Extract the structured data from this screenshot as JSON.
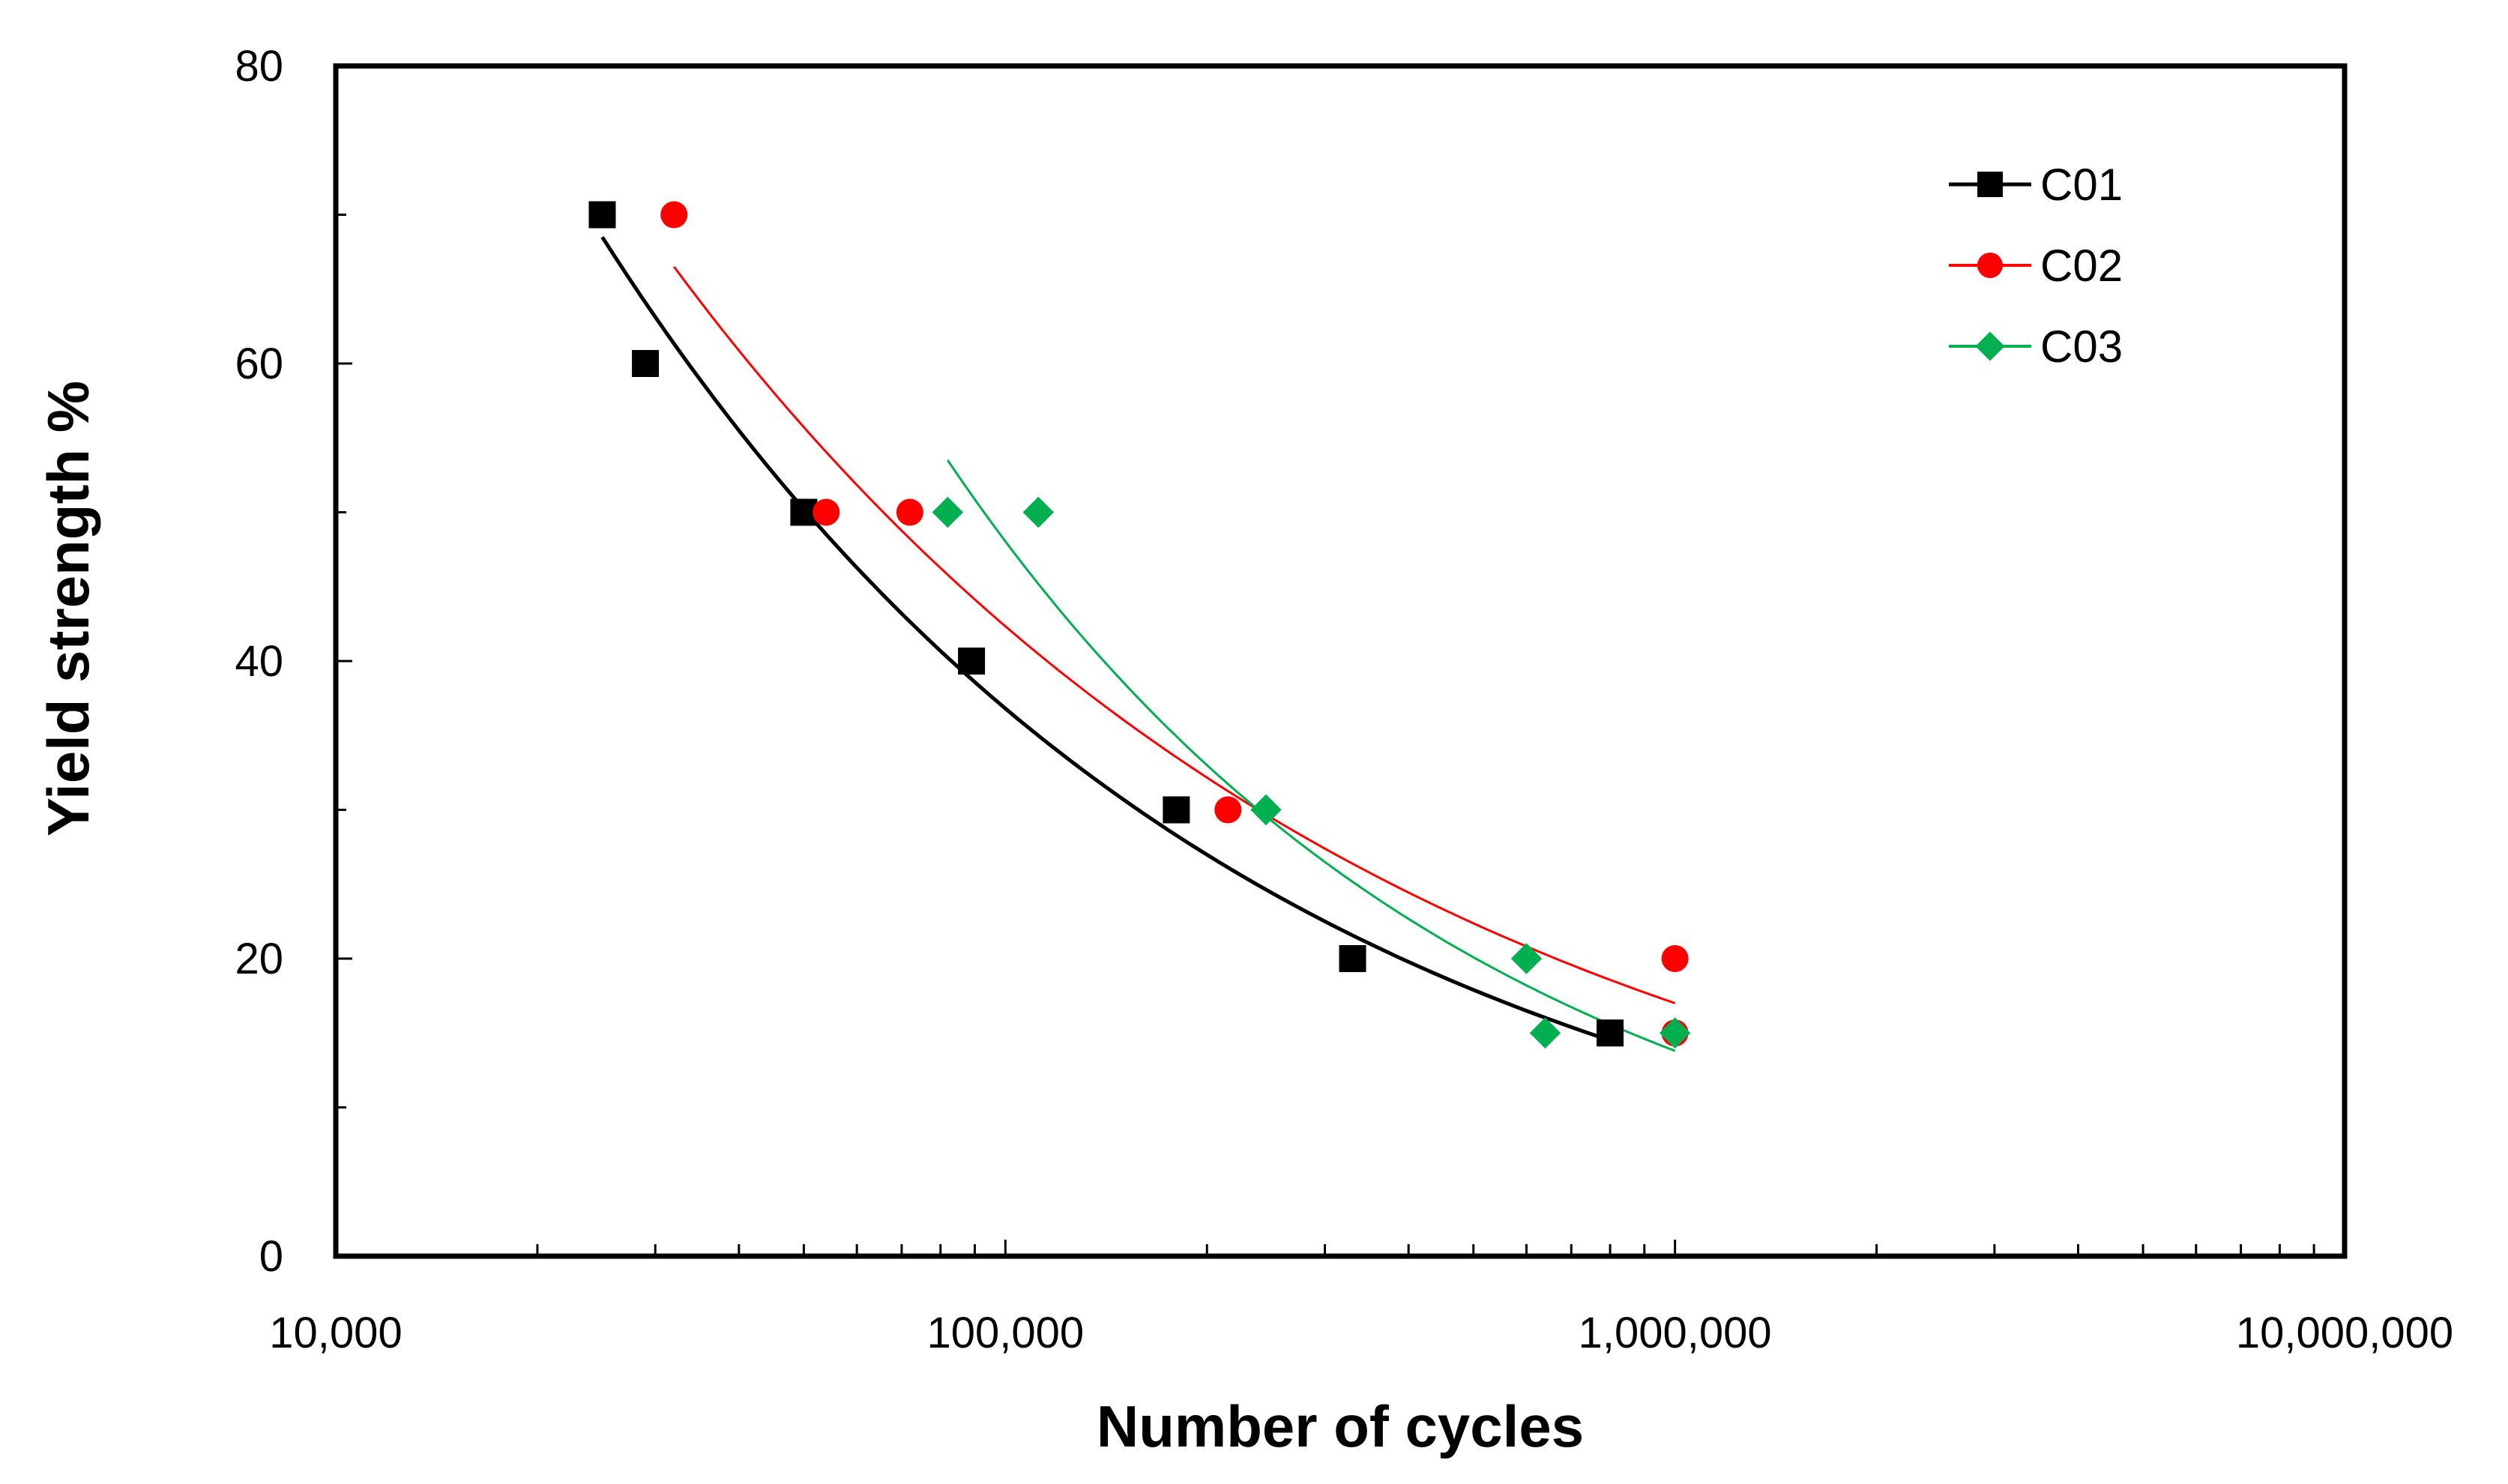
{
  "chart_data": {
    "type": "scatter",
    "title": "",
    "xlabel": "Number of cycles",
    "ylabel": "Yield strength %",
    "xscale": "log",
    "xlim": [
      10000,
      10000000
    ],
    "ylim": [
      0,
      80
    ],
    "x_ticks": [
      10000,
      100000,
      1000000,
      10000000
    ],
    "x_tick_labels": [
      "10,000",
      "100,000",
      "1,000,000",
      "10,000,000"
    ],
    "y_ticks": [
      0,
      20,
      40,
      60,
      80
    ],
    "y_tick_labels": [
      "0",
      "20",
      "40",
      "60",
      "80"
    ],
    "legend_position": "top-right",
    "grid": false,
    "series": [
      {
        "name": "C01",
        "color": "#000000",
        "marker": "square",
        "points": [
          [
            25000,
            70
          ],
          [
            29000,
            60
          ],
          [
            50000,
            50
          ],
          [
            89000,
            40
          ],
          [
            180000,
            30
          ],
          [
            330000,
            20
          ],
          [
            800000,
            15
          ]
        ],
        "trendline": {
          "x_range": [
            25000,
            800000
          ],
          "y_range": [
            68.5,
            14.5
          ]
        }
      },
      {
        "name": "C02",
        "color": "#ff0000",
        "marker": "circle",
        "points": [
          [
            32000,
            70
          ],
          [
            54000,
            50
          ],
          [
            72000,
            50
          ],
          [
            215000,
            30
          ],
          [
            1000000,
            20
          ],
          [
            1000000,
            15
          ]
        ],
        "trendline": {
          "x_range": [
            32000,
            1000000
          ],
          "y_range": [
            66.5,
            17
          ]
        }
      },
      {
        "name": "C03",
        "color": "#00b050",
        "marker": "diamond",
        "points": [
          [
            82000,
            50
          ],
          [
            112000,
            50
          ],
          [
            245000,
            30
          ],
          [
            600000,
            20
          ],
          [
            640000,
            15
          ],
          [
            1000000,
            15
          ]
        ],
        "trendline": {
          "x_range": [
            82000,
            1000000
          ],
          "y_range": [
            53.5,
            13.8
          ]
        }
      }
    ]
  }
}
